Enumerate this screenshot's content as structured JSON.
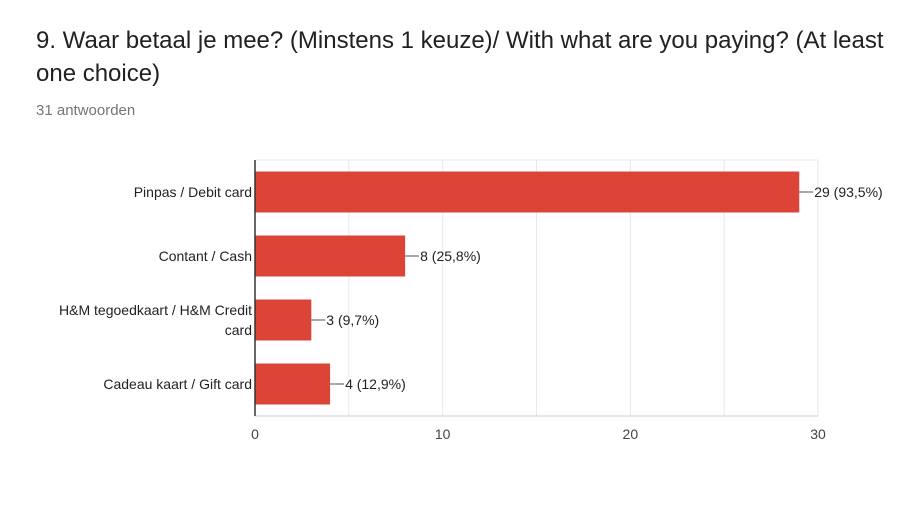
{
  "question": {
    "title": "9. Waar betaal je mee? (Minstens 1 keuze)/ With what are you paying? (At least one choice)",
    "response_count": "31 antwoorden"
  },
  "colors": {
    "bar": "#db4437",
    "grid": "#e8e8e8",
    "axis": "#333333"
  },
  "chart_data": {
    "type": "bar",
    "orientation": "horizontal",
    "title": "9. Waar betaal je mee? (Minstens 1 keuze)/ With what are you paying? (At least one choice)",
    "xlabel": "",
    "ylabel": "",
    "xlim": [
      0,
      30
    ],
    "xticks": [
      0,
      10,
      20,
      30
    ],
    "grid": true,
    "categories": [
      [
        "Pinpas / Debit card"
      ],
      [
        "Contant / Cash"
      ],
      [
        "H&M tegoedkaart / H&M Credit",
        "card"
      ],
      [
        "Cadeau kaart / Gift card"
      ]
    ],
    "values": [
      29,
      8,
      3,
      4
    ],
    "data_labels": [
      "29 (93,5%)",
      "8 (25,8%)",
      "3 (9,7%)",
      "4 (12,9%)"
    ]
  }
}
